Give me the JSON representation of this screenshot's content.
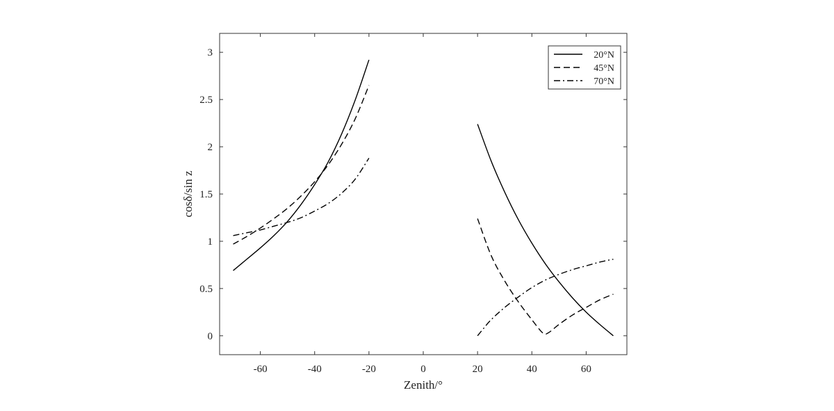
{
  "chart_data": {
    "type": "line",
    "title": "",
    "xlabel": "Zenith/°",
    "ylabel": "cosδ/sin z",
    "xlim": [
      -75,
      75
    ],
    "ylim": [
      -0.2,
      3.2
    ],
    "xticks": [
      -60,
      -40,
      -20,
      0,
      20,
      40,
      60
    ],
    "yticks": [
      0,
      0.5,
      1,
      1.5,
      2,
      2.5,
      3
    ],
    "xtick_labels": [
      "-60",
      "-40",
      "-20",
      "0",
      "20",
      "40",
      "60"
    ],
    "ytick_labels": [
      "0",
      "0.5",
      "1",
      "1.5",
      "2",
      "2.5",
      "3"
    ],
    "grid": false,
    "legend_position": "top-right",
    "series": [
      {
        "name": "20°N",
        "line_style": "solid",
        "color": "#000000",
        "segments": [
          {
            "x": [
              -70,
              -65,
              -60,
              -55,
              -50,
              -45,
              -40,
              -35,
              -30,
              -25,
              -20
            ],
            "y": [
              0.69,
              0.81,
              0.93,
              1.06,
              1.21,
              1.39,
              1.6,
              1.84,
              2.14,
              2.5,
              2.92
            ]
          },
          {
            "x": [
              20,
              25,
              30,
              35,
              40,
              45,
              50,
              55,
              60,
              65,
              70
            ],
            "y": [
              2.24,
              1.85,
              1.52,
              1.23,
              0.98,
              0.76,
              0.57,
              0.4,
              0.25,
              0.12,
              0.0
            ]
          }
        ]
      },
      {
        "name": "45°N",
        "line_style": "dashed",
        "color": "#000000",
        "segments": [
          {
            "x": [
              -70,
              -65,
              -60,
              -55,
              -50,
              -45,
              -40,
              -35,
              -30,
              -25,
              -20
            ],
            "y": [
              0.97,
              1.05,
              1.14,
              1.24,
              1.35,
              1.48,
              1.63,
              1.81,
              2.03,
              2.3,
              2.65
            ]
          },
          {
            "x": [
              20,
              25,
              30,
              35,
              40,
              44,
              46,
              50,
              55,
              60,
              65,
              70
            ],
            "y": [
              1.24,
              0.85,
              0.58,
              0.36,
              0.17,
              0.03,
              0.03,
              0.12,
              0.22,
              0.3,
              0.38,
              0.44
            ]
          }
        ]
      },
      {
        "name": "70°N",
        "line_style": "dashdot",
        "color": "#000000",
        "segments": [
          {
            "x": [
              -70,
              -65,
              -60,
              -55,
              -50,
              -45,
              -40,
              -35,
              -30,
              -25,
              -20
            ],
            "y": [
              1.06,
              1.09,
              1.12,
              1.16,
              1.2,
              1.25,
              1.32,
              1.4,
              1.51,
              1.66,
              1.88
            ]
          },
          {
            "x": [
              20,
              22,
              25,
              30,
              35,
              40,
              45,
              50,
              55,
              60,
              65,
              70
            ],
            "y": [
              0.0,
              0.07,
              0.17,
              0.3,
              0.41,
              0.51,
              0.59,
              0.65,
              0.7,
              0.74,
              0.78,
              0.81
            ]
          }
        ]
      }
    ]
  }
}
